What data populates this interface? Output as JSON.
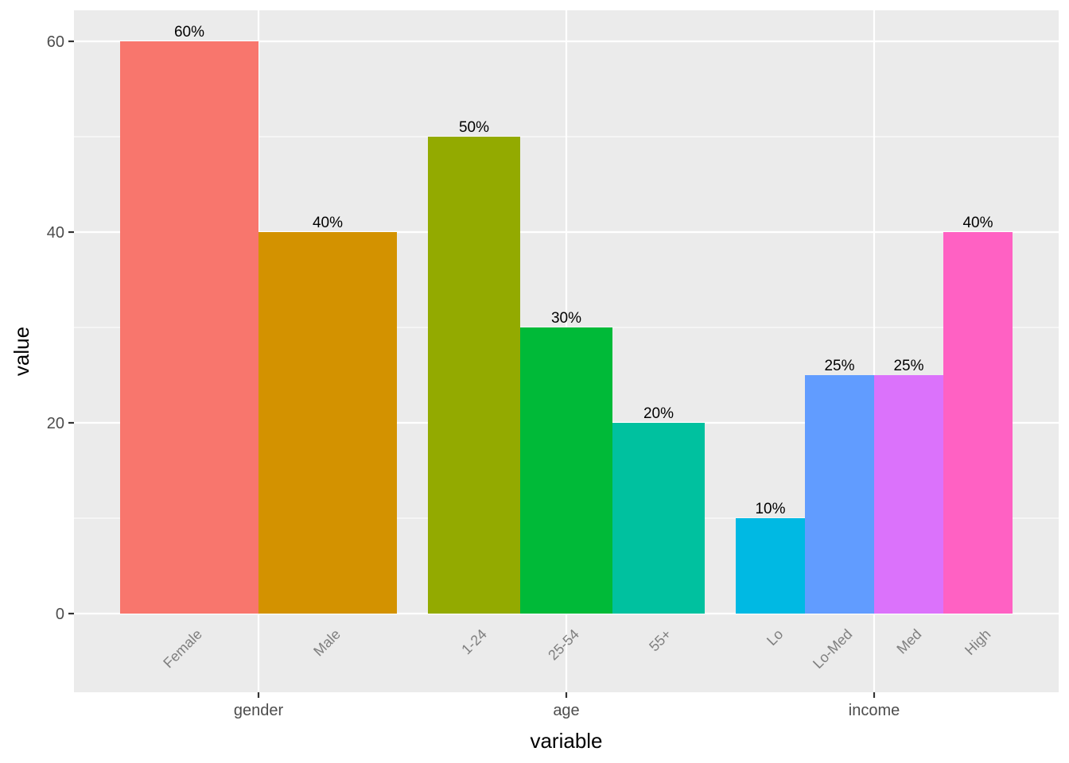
{
  "chart_data": {
    "type": "bar",
    "title": "",
    "xlabel": "variable",
    "ylabel": "value",
    "ylim": [
      -8.3,
      63.25
    ],
    "yticks": [
      0,
      20,
      40,
      60
    ],
    "grid": true,
    "legend": null,
    "groups": [
      {
        "name": "gender",
        "bars": [
          {
            "label": "Female",
            "value": 60,
            "text": "60%",
            "color": "#F8766D"
          },
          {
            "label": "Male",
            "value": 40,
            "text": "40%",
            "color": "#D39200"
          }
        ]
      },
      {
        "name": "age",
        "bars": [
          {
            "label": "1-24",
            "value": 50,
            "text": "50%",
            "color": "#93AA00"
          },
          {
            "label": "25-54",
            "value": 30,
            "text": "30%",
            "color": "#00BA38"
          },
          {
            "label": "55+",
            "value": 20,
            "text": "20%",
            "color": "#00C19F"
          }
        ]
      },
      {
        "name": "income",
        "bars": [
          {
            "label": "Lo",
            "value": 10,
            "text": "10%",
            "color": "#00B9E3"
          },
          {
            "label": "Lo-Med",
            "value": 25,
            "text": "25%",
            "color": "#619CFF"
          },
          {
            "label": "Med",
            "value": 25,
            "text": "25%",
            "color": "#DB72FB"
          },
          {
            "label": "High",
            "value": 40,
            "text": "40%",
            "color": "#FF61C3"
          }
        ]
      }
    ],
    "categories": [
      "Female",
      "Male",
      "1-24",
      "25-54",
      "55+",
      "Lo",
      "Lo-Med",
      "Med",
      "High"
    ],
    "values": [
      60,
      40,
      50,
      30,
      20,
      10,
      25,
      25,
      40
    ]
  },
  "style": {
    "panel_bg": "#EBEBEB",
    "grid_color": "#FFFFFF",
    "tick_text_color": "#4D4D4D",
    "inner_label_color": "#7F7F7F"
  }
}
